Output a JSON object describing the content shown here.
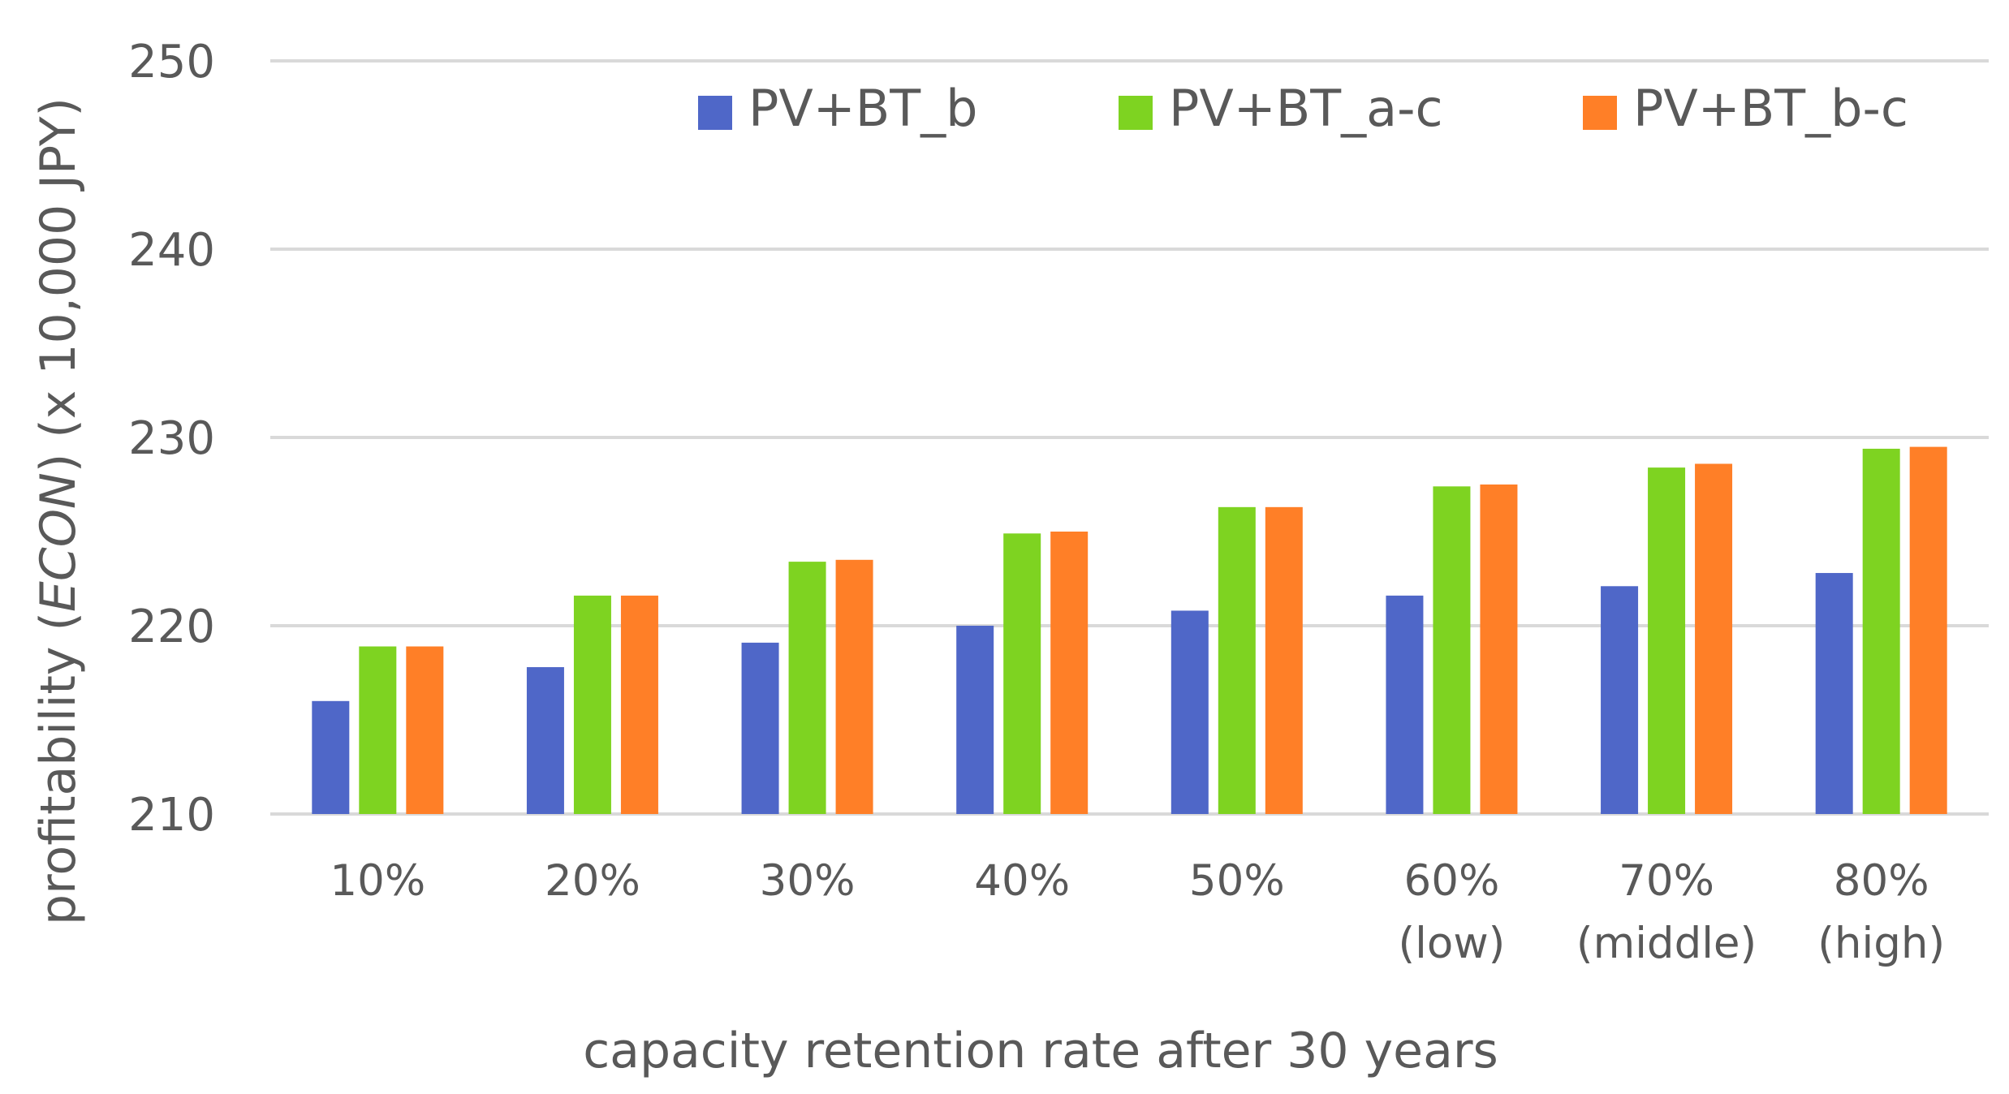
{
  "chart_data": {
    "type": "bar",
    "title": "",
    "xlabel": "capacity retention rate after 30 years",
    "ylabel_parts": [
      "profitability (",
      "ECON",
      ") (x 10,000 JPY)"
    ],
    "ylim": [
      210,
      250
    ],
    "yticks": [
      210,
      220,
      230,
      240,
      250
    ],
    "grid": true,
    "legend_position": "top-right",
    "categories": [
      [
        "10%"
      ],
      [
        "20%"
      ],
      [
        "30%"
      ],
      [
        "40%"
      ],
      [
        "50%"
      ],
      [
        "60%",
        "(low)"
      ],
      [
        "70%",
        "(middle)"
      ],
      [
        "80%",
        "(high)"
      ]
    ],
    "series": [
      {
        "name": "PV+BT_b",
        "color": "#4F67C8",
        "values": [
          216.0,
          217.8,
          219.1,
          220.0,
          220.8,
          221.6,
          222.1,
          222.8
        ]
      },
      {
        "name": "PV+BT_a-c",
        "color": "#7ED321",
        "values": [
          218.9,
          221.6,
          223.4,
          224.9,
          226.3,
          227.4,
          228.4,
          229.4
        ]
      },
      {
        "name": "PV+BT_b-c",
        "color": "#FF7F27",
        "values": [
          218.9,
          221.6,
          223.5,
          225.0,
          226.3,
          227.5,
          228.6,
          229.5
        ]
      }
    ]
  }
}
